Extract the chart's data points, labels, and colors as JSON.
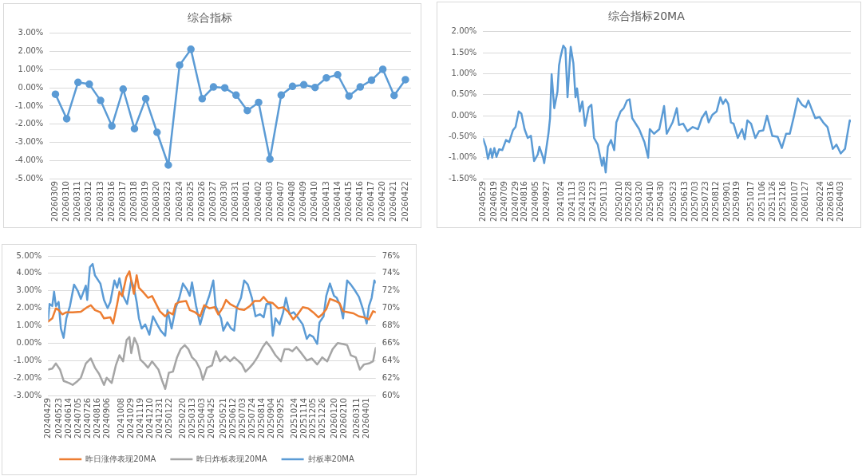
{
  "chart_data": [
    {
      "type": "line",
      "title": "综合指标",
      "categories": [
        "20260309",
        "20260310",
        "20260311",
        "20260312",
        "20260313",
        "20260316",
        "20260317",
        "20260318",
        "20260319",
        "20260320",
        "20260323",
        "20260324",
        "20260325",
        "20260326",
        "20260327",
        "20260330",
        "20260331",
        "20260401",
        "20260402",
        "20260403",
        "20260407",
        "20260408",
        "20260409",
        "20260410",
        "20260413",
        "20260414",
        "20260415",
        "20260416",
        "20260417",
        "20260420",
        "20260421",
        "20260422"
      ],
      "series": [
        {
          "color": "#5b9bd5",
          "values": [
            -0.35,
            -1.7,
            0.3,
            0.2,
            -0.7,
            -2.1,
            -0.07,
            -2.25,
            -0.6,
            -2.45,
            -4.25,
            1.25,
            2.12,
            -0.6,
            0.05,
            0.0,
            -0.4,
            -1.25,
            -0.8,
            -3.92,
            -0.4,
            0.08,
            0.17,
            0.02,
            0.55,
            0.72,
            -0.45,
            0.05,
            0.42,
            1.02,
            -0.42,
            0.45
          ]
        }
      ],
      "ylim": [
        -5,
        3
      ],
      "yticks": [
        {
          "value": -5,
          "label": "-5.00%"
        },
        {
          "value": -4,
          "label": "-4.00%"
        },
        {
          "value": -3,
          "label": "-3.00%"
        },
        {
          "value": -2,
          "label": "-2.00%"
        },
        {
          "value": -1,
          "label": "-1.00%"
        },
        {
          "value": 0,
          "label": "0.00%"
        },
        {
          "value": 1,
          "label": "1.00%"
        },
        {
          "value": 2,
          "label": "2.00%"
        },
        {
          "value": 3,
          "label": "3.00%"
        }
      ],
      "grid": "y",
      "legend": false,
      "marker": "circle",
      "line_style": "solid"
    },
    {
      "type": "line",
      "title": "综合指标20MA",
      "series": [
        {
          "color": "#5b9bd5",
          "x": [
            "2024-05-29",
            "2024-06-03",
            "2024-06-07",
            "2024-06-12",
            "2024-06-15",
            "2024-06-19",
            "2024-06-23",
            "2024-06-28",
            "2024-07-04",
            "2024-07-11",
            "2024-07-17",
            "2024-07-24",
            "2024-07-29",
            "2024-08-04",
            "2024-08-09",
            "2024-08-15",
            "2024-08-21",
            "2024-08-27",
            "2024-09-02",
            "2024-09-09",
            "2024-09-12",
            "2024-09-19",
            "2024-09-21",
            "2024-09-29",
            "2024-10-02",
            "2024-10-05",
            "2024-10-10",
            "2024-10-16",
            "2024-10-19",
            "2024-10-22",
            "2024-10-27",
            "2024-10-31",
            "2024-11-04",
            "2024-11-10",
            "2024-11-15",
            "2024-11-19",
            "2024-11-22",
            "2024-11-27",
            "2024-12-02",
            "2024-12-07",
            "2024-12-14",
            "2024-12-19",
            "2024-12-24",
            "2024-12-31",
            "2025-01-08",
            "2025-01-11",
            "2025-01-15",
            "2025-01-19",
            "2025-01-25",
            "2025-01-31",
            "2025-02-04",
            "2025-02-12",
            "2025-02-18",
            "2025-02-24",
            "2025-03-01",
            "2025-03-06",
            "2025-03-19",
            "2025-03-29",
            "2025-04-05",
            "2025-04-08",
            "2025-04-16",
            "2025-04-26",
            "2025-05-05",
            "2025-05-10",
            "2025-05-21",
            "2025-05-29",
            "2025-06-02",
            "2025-06-10",
            "2025-06-18",
            "2025-06-28",
            "2025-07-08",
            "2025-07-15",
            "2025-07-23",
            "2025-07-28",
            "2025-08-04",
            "2025-08-12",
            "2025-08-19",
            "2025-08-24",
            "2025-08-29",
            "2025-09-03",
            "2025-09-08",
            "2025-09-13",
            "2025-09-21",
            "2025-09-29",
            "2025-10-04",
            "2025-10-09",
            "2025-10-16",
            "2025-10-24",
            "2025-10-31",
            "2025-11-08",
            "2025-11-15",
            "2025-11-25",
            "2025-12-05",
            "2025-12-13",
            "2025-12-21",
            "2025-12-28",
            "2026-01-05",
            "2026-01-12",
            "2026-01-20",
            "2026-01-27",
            "2026-02-01",
            "2026-02-09",
            "2026-02-14",
            "2026-02-22",
            "2026-03-01",
            "2026-03-09",
            "2026-03-19",
            "2026-03-26",
            "2026-04-03",
            "2026-04-11",
            "2026-04-15",
            "2026-04-20",
            "2026-04-22"
          ],
          "values": [
            -0.55,
            -0.74,
            -1.03,
            -0.79,
            -1.0,
            -0.77,
            -0.98,
            -0.8,
            -0.82,
            -0.58,
            -0.63,
            -0.35,
            -0.27,
            0.1,
            0.05,
            -0.32,
            -0.53,
            -0.48,
            -1.08,
            -0.92,
            -0.74,
            -1.0,
            -1.13,
            -0.43,
            -0.06,
            0.99,
            0.18,
            0.57,
            1.2,
            1.41,
            1.67,
            1.6,
            0.44,
            1.64,
            1.25,
            0.44,
            0.65,
            0.1,
            0.34,
            -0.24,
            0.2,
            0.26,
            -0.53,
            -0.69,
            -1.19,
            -1.0,
            -1.35,
            -0.74,
            -0.58,
            -0.82,
            -0.16,
            0.1,
            0.18,
            0.36,
            0.39,
            -0.06,
            -0.32,
            -0.63,
            -1.0,
            -0.32,
            -0.43,
            -0.32,
            0.23,
            -0.43,
            -0.16,
            0.18,
            -0.22,
            -0.19,
            -0.37,
            -0.27,
            -0.32,
            -0.06,
            0.1,
            -0.16,
            0.02,
            0.1,
            0.44,
            0.28,
            0.39,
            0.28,
            -0.16,
            -0.19,
            -0.53,
            -0.32,
            -0.56,
            -0.11,
            -0.19,
            -0.53,
            -0.37,
            -0.35,
            0.0,
            -0.48,
            -0.5,
            -0.77,
            -0.43,
            -0.43,
            0.0,
            0.41,
            0.26,
            0.2,
            0.36,
            0.1,
            -0.06,
            -0.03,
            -0.16,
            -0.27,
            -0.79,
            -0.69,
            -0.9,
            -0.79,
            -0.48,
            -0.11,
            -0.13
          ]
        }
      ],
      "xlim": [
        "2024-05-29",
        "2026-04-22"
      ],
      "xticks": [
        {
          "value": "2024-05-29",
          "label": "20240529"
        },
        {
          "value": "2024-06-19",
          "label": "20240619"
        },
        {
          "value": "2024-07-09",
          "label": "20240709"
        },
        {
          "value": "2024-07-29",
          "label": "20240729"
        },
        {
          "value": "2024-08-16",
          "label": "20240816"
        },
        {
          "value": "2024-09-05",
          "label": "20240905"
        },
        {
          "value": "2024-09-27",
          "label": "20240927"
        },
        {
          "value": "2024-10-24",
          "label": "20241024"
        },
        {
          "value": "2024-11-13",
          "label": "20241113"
        },
        {
          "value": "2024-12-03",
          "label": "20241203"
        },
        {
          "value": "2024-12-23",
          "label": "20241223"
        },
        {
          "value": "2025-01-13",
          "label": "20250113"
        },
        {
          "value": "2025-02-10",
          "label": "20250210"
        },
        {
          "value": "2025-02-28",
          "label": "20250228"
        },
        {
          "value": "2025-03-20",
          "label": "20250320"
        },
        {
          "value": "2025-04-10",
          "label": "20250410"
        },
        {
          "value": "2025-04-30",
          "label": "20250430"
        },
        {
          "value": "2025-05-23",
          "label": "20250523"
        },
        {
          "value": "2025-06-13",
          "label": "20250613"
        },
        {
          "value": "2025-07-03",
          "label": "20250703"
        },
        {
          "value": "2025-07-23",
          "label": "20250723"
        },
        {
          "value": "2025-08-12",
          "label": "20250812"
        },
        {
          "value": "2025-09-01",
          "label": "20250901"
        },
        {
          "value": "2025-09-19",
          "label": "20250919"
        },
        {
          "value": "2025-10-17",
          "label": "20251017"
        },
        {
          "value": "2025-11-06",
          "label": "20251106"
        },
        {
          "value": "2025-11-26",
          "label": "20251126"
        },
        {
          "value": "2025-12-16",
          "label": "20251216"
        },
        {
          "value": "2026-01-07",
          "label": "20260107"
        },
        {
          "value": "2026-01-27",
          "label": "20260127"
        },
        {
          "value": "2026-02-24",
          "label": "20260224"
        },
        {
          "value": "2026-03-16",
          "label": "20260316"
        },
        {
          "value": "2026-04-03",
          "label": "20260403"
        }
      ],
      "ylim": [
        -1.5,
        2
      ],
      "yticks": [
        {
          "value": -1.5,
          "label": "-1.50%"
        },
        {
          "value": -1,
          "label": "-1.00%"
        },
        {
          "value": -0.5,
          "label": "-0.50%"
        },
        {
          "value": 0,
          "label": "0.00%"
        },
        {
          "value": 0.5,
          "label": "0.50%"
        },
        {
          "value": 1,
          "label": "1.00%"
        },
        {
          "value": 1.5,
          "label": "1.50%"
        },
        {
          "value": 2,
          "label": "2.00%"
        }
      ],
      "grid": "y",
      "legend": false,
      "marker": "none",
      "line_style": "solid"
    },
    {
      "type": "line",
      "series": [
        {
          "name": "昨日涨停表现20MA",
          "color": "#ed7d31",
          "x": [
            "2024-04-29",
            "2024-05-08",
            "2024-05-16",
            "2024-05-22",
            "2024-05-30",
            "2024-06-08",
            "2024-06-22",
            "2024-07-10",
            "2024-07-24",
            "2024-08-01",
            "2024-08-10",
            "2024-08-22",
            "2024-08-30",
            "2024-09-13",
            "2024-09-19",
            "2024-09-28",
            "2024-10-03",
            "2024-10-09",
            "2024-10-18",
            "2024-10-25",
            "2024-10-29",
            "2024-11-04",
            "2024-11-10",
            "2024-11-15",
            "2024-11-24",
            "2024-12-05",
            "2024-12-14",
            "2024-12-23",
            "2024-12-31",
            "2025-01-12",
            "2025-01-20",
            "2025-01-29",
            "2025-02-04",
            "2025-02-12",
            "2025-02-27",
            "2025-03-07",
            "2025-03-19",
            "2025-03-30",
            "2025-04-08",
            "2025-04-19",
            "2025-05-01",
            "2025-05-09",
            "2025-05-18",
            "2025-05-26",
            "2025-06-04",
            "2025-06-13",
            "2025-06-24",
            "2025-07-05",
            "2025-07-17",
            "2025-07-28",
            "2025-08-09",
            "2025-08-17",
            "2025-08-26",
            "2025-09-06",
            "2025-09-18",
            "2025-09-29",
            "2025-10-11",
            "2025-10-21",
            "2025-10-31",
            "2025-11-11",
            "2025-11-23",
            "2025-12-04",
            "2025-12-16",
            "2025-12-24",
            "2026-01-02",
            "2026-01-10",
            "2026-01-22",
            "2026-01-31",
            "2026-02-08",
            "2026-02-20",
            "2026-03-03",
            "2026-03-15",
            "2026-03-26",
            "2026-04-06",
            "2026-04-15",
            "2026-04-21"
          ],
          "values": [
            1.24,
            1.42,
            2.0,
            1.9,
            1.65,
            1.77,
            1.77,
            1.8,
            2.06,
            2.18,
            1.9,
            1.77,
            1.42,
            1.48,
            1.13,
            2.24,
            2.94,
            2.7,
            3.77,
            4.12,
            3.59,
            2.83,
            3.89,
            3.18,
            2.94,
            2.6,
            2.7,
            2.24,
            1.83,
            1.54,
            1.77,
            1.65,
            2.24,
            2.36,
            2.42,
            1.9,
            1.77,
            1.54,
            2.18,
            2.0,
            2.06,
            1.65,
            2.0,
            2.48,
            2.24,
            2.12,
            1.95,
            1.9,
            2.12,
            2.42,
            2.42,
            2.65,
            2.36,
            2.3,
            2.0,
            2.06,
            1.77,
            1.36,
            1.65,
            2.06,
            2.0,
            1.77,
            1.48,
            1.65,
            1.95,
            2.54,
            2.42,
            2.3,
            1.83,
            1.77,
            1.71,
            1.54,
            1.48,
            1.36,
            1.83,
            1.77
          ]
        },
        {
          "name": "昨日炸板表现20MA",
          "color": "#a5a5a5",
          "x": [
            "2024-04-29",
            "2024-05-08",
            "2024-05-16",
            "2024-05-25",
            "2024-06-02",
            "2024-06-14",
            "2024-06-22",
            "2024-07-01",
            "2024-07-10",
            "2024-07-21",
            "2024-08-01",
            "2024-08-10",
            "2024-08-19",
            "2024-08-30",
            "2024-09-05",
            "2024-09-16",
            "2024-09-25",
            "2024-10-03",
            "2024-10-11",
            "2024-10-19",
            "2024-10-25",
            "2024-10-29",
            "2024-11-05",
            "2024-11-12",
            "2024-11-18",
            "2024-11-27",
            "2024-12-05",
            "2024-12-14",
            "2024-12-28",
            "2025-01-06",
            "2025-01-12",
            "2025-01-20",
            "2025-01-29",
            "2025-02-07",
            "2025-02-15",
            "2025-02-24",
            "2025-03-04",
            "2025-03-12",
            "2025-03-21",
            "2025-03-30",
            "2025-04-05",
            "2025-04-14",
            "2025-04-25",
            "2025-05-04",
            "2025-05-13",
            "2025-05-24",
            "2025-06-04",
            "2025-06-13",
            "2025-06-21",
            "2025-06-30",
            "2025-07-08",
            "2025-07-17",
            "2025-07-25",
            "2025-08-03",
            "2025-08-15",
            "2025-08-23",
            "2025-09-01",
            "2025-09-12",
            "2025-09-24",
            "2025-10-02",
            "2025-10-11",
            "2025-10-19",
            "2025-10-28",
            "2025-11-08",
            "2025-11-20",
            "2025-12-01",
            "2025-12-13",
            "2025-12-24",
            "2026-01-04",
            "2026-01-16",
            "2026-01-27",
            "2026-02-08",
            "2026-02-17",
            "2026-02-25",
            "2026-03-08",
            "2026-03-17",
            "2026-03-26",
            "2026-04-06",
            "2026-04-15",
            "2026-04-21"
          ],
          "values": [
            -1.51,
            -1.45,
            -1.16,
            -1.51,
            -2.16,
            -2.28,
            -2.39,
            -2.21,
            -1.98,
            -1.16,
            -0.87,
            -1.4,
            -1.75,
            -2.39,
            -1.98,
            -2.28,
            -1.28,
            -0.69,
            -1.04,
            0.19,
            0.36,
            -0.57,
            0.3,
            -0.11,
            -0.93,
            -1.16,
            -1.4,
            -1.04,
            -1.51,
            -2.21,
            -2.62,
            -1.69,
            -1.63,
            -0.81,
            -0.34,
            -0.11,
            -0.34,
            -0.81,
            -1.04,
            -1.51,
            -2.1,
            -1.4,
            -1.28,
            -0.46,
            -1.04,
            -0.75,
            -1.04,
            -0.81,
            -0.99,
            -1.22,
            -1.63,
            -1.4,
            -1.16,
            -0.81,
            -0.22,
            0.07,
            -0.22,
            -0.69,
            -1.04,
            -0.34,
            -0.34,
            -0.46,
            -0.22,
            -0.57,
            -0.99,
            -0.87,
            -1.22,
            -0.81,
            -1.04,
            -0.34,
            0.01,
            -0.05,
            -0.11,
            -0.69,
            -0.81,
            -1.51,
            -1.22,
            -1.16,
            -1.04,
            -0.28
          ]
        },
        {
          "name": "封板率20MA",
          "color": "#5b9bd5",
          "axis": "y2",
          "x": [
            "2024-04-29",
            "2024-05-02",
            "2024-05-08",
            "2024-05-12",
            "2024-05-16",
            "2024-05-22",
            "2024-05-27",
            "2024-06-02",
            "2024-06-08",
            "2024-06-16",
            "2024-06-25",
            "2024-07-03",
            "2024-07-10",
            "2024-07-21",
            "2024-07-24",
            "2024-07-30",
            "2024-08-05",
            "2024-08-10",
            "2024-08-22",
            "2024-08-30",
            "2024-09-07",
            "2024-09-13",
            "2024-09-22",
            "2024-09-28",
            "2024-10-03",
            "2024-10-11",
            "2024-10-20",
            "2024-10-29",
            "2024-11-04",
            "2024-11-10",
            "2024-11-15",
            "2024-11-21",
            "2024-11-29",
            "2024-12-08",
            "2024-12-16",
            "2024-12-25",
            "2025-01-02",
            "2025-01-12",
            "2025-01-17",
            "2025-01-26",
            "2025-02-04",
            "2025-02-12",
            "2025-02-20",
            "2025-03-01",
            "2025-03-07",
            "2025-03-12",
            "2025-03-21",
            "2025-03-30",
            "2025-04-08",
            "2025-04-19",
            "2025-04-28",
            "2025-05-03",
            "2025-05-15",
            "2025-05-20",
            "2025-05-29",
            "2025-06-06",
            "2025-06-13",
            "2025-06-19",
            "2025-06-28",
            "2025-07-05",
            "2025-07-13",
            "2025-07-22",
            "2025-07-30",
            "2025-08-09",
            "2025-08-17",
            "2025-08-23",
            "2025-09-01",
            "2025-09-06",
            "2025-09-12",
            "2025-09-21",
            "2025-09-29",
            "2025-10-05",
            "2025-10-13",
            "2025-10-22",
            "2025-10-31",
            "2025-11-11",
            "2025-11-20",
            "2025-11-26",
            "2025-12-04",
            "2025-12-13",
            "2025-12-18",
            "2025-12-27",
            "2026-01-02",
            "2026-01-10",
            "2026-01-19",
            "2026-01-25",
            "2026-02-02",
            "2026-02-08",
            "2026-02-17",
            "2026-02-25",
            "2026-03-05",
            "2026-03-15",
            "2026-03-23",
            "2026-04-01",
            "2026-04-06",
            "2026-04-12",
            "2026-04-18",
            "2026-04-21"
          ],
          "values": [
            68.73,
            70.5,
            70.26,
            71.9,
            70.26,
            70.73,
            67.68,
            66.62,
            68.85,
            70.26,
            72.72,
            72.02,
            71.08,
            72.6,
            70.96,
            74.72,
            75.07,
            73.78,
            72.84,
            70.96,
            70.02,
            70.73,
            73.19,
            72.37,
            73.43,
            71.43,
            70.49,
            73.19,
            72.37,
            70.73,
            68.85,
            67.68,
            68.15,
            66.97,
            69.08,
            68.18,
            67.44,
            66.85,
            69.79,
            67.68,
            70.02,
            71.2,
            72.84,
            72.14,
            71.43,
            72.96,
            70.26,
            68.15,
            69.79,
            71.43,
            73.19,
            70.26,
            68.85,
            67.44,
            68.38,
            67.68,
            67.44,
            70.14,
            71.2,
            73.19,
            72.72,
            71.2,
            69.08,
            69.32,
            68.97,
            70.49,
            70.49,
            66.85,
            68.85,
            68.15,
            69.55,
            71.2,
            69.32,
            69.55,
            68.97,
            68.15,
            66.5,
            66.97,
            66.74,
            65.92,
            68.38,
            69.08,
            71.43,
            72.84,
            71.43,
            71.2,
            70.26,
            68.85,
            73.19,
            72.72,
            72.14,
            71.31,
            70.02,
            68.26,
            70.26,
            71.2,
            73.19,
            72.96
          ]
        }
      ],
      "xlim": [
        "2024-04-29",
        "2026-04-21"
      ],
      "xticks": [
        {
          "value": "2024-04-29",
          "label": "20240429"
        },
        {
          "value": "2024-05-23",
          "label": "20240523"
        },
        {
          "value": "2024-06-14",
          "label": "20240614"
        },
        {
          "value": "2024-07-05",
          "label": "20240705"
        },
        {
          "value": "2024-07-26",
          "label": "20240726"
        },
        {
          "value": "2024-08-16",
          "label": "20240816"
        },
        {
          "value": "2024-09-06",
          "label": "20240906"
        },
        {
          "value": "2024-10-08",
          "label": "20241008"
        },
        {
          "value": "2024-10-29",
          "label": "20241029"
        },
        {
          "value": "2024-11-19",
          "label": "20241119"
        },
        {
          "value": "2024-12-10",
          "label": "20241210"
        },
        {
          "value": "2024-12-31",
          "label": "20241231"
        },
        {
          "value": "2025-01-22",
          "label": "20250122"
        },
        {
          "value": "2025-02-20",
          "label": "20250220"
        },
        {
          "value": "2025-03-13",
          "label": "20250313"
        },
        {
          "value": "2025-04-03",
          "label": "20250403"
        },
        {
          "value": "2025-04-25",
          "label": "20250425"
        },
        {
          "value": "2025-05-21",
          "label": "20250521"
        },
        {
          "value": "2025-06-12",
          "label": "20250612"
        },
        {
          "value": "2025-07-03",
          "label": "20250703"
        },
        {
          "value": "2025-07-24",
          "label": "20250724"
        },
        {
          "value": "2025-08-14",
          "label": "20250814"
        },
        {
          "value": "2025-09-04",
          "label": "20250904"
        },
        {
          "value": "2025-09-25",
          "label": "20250925"
        },
        {
          "value": "2025-10-24",
          "label": "20251024"
        },
        {
          "value": "2025-11-14",
          "label": "20251114"
        },
        {
          "value": "2025-12-05",
          "label": "20251205"
        },
        {
          "value": "2025-12-26",
          "label": "20251226"
        },
        {
          "value": "2026-01-20",
          "label": "20260120"
        },
        {
          "value": "2026-02-10",
          "label": "20260210"
        },
        {
          "value": "2026-03-11",
          "label": "20260311"
        },
        {
          "value": "2026-04-01",
          "label": "20260401"
        }
      ],
      "ylim": [
        -3,
        5
      ],
      "yticks": [
        {
          "value": -3,
          "label": "-3.00%"
        },
        {
          "value": -2,
          "label": "-2.00%"
        },
        {
          "value": -1,
          "label": "-1.00%"
        },
        {
          "value": 0,
          "label": "0.00%"
        },
        {
          "value": 1,
          "label": "1.00%"
        },
        {
          "value": 2,
          "label": "2.00%"
        },
        {
          "value": 3,
          "label": "3.00%"
        },
        {
          "value": 4,
          "label": "4.00%"
        },
        {
          "value": 5,
          "label": "5.00%"
        }
      ],
      "y2lim": [
        60,
        76
      ],
      "y2ticks": [
        {
          "value": 60,
          "label": "60%"
        },
        {
          "value": 62,
          "label": "62%"
        },
        {
          "value": 64,
          "label": "64%"
        },
        {
          "value": 66,
          "label": "66%"
        },
        {
          "value": 68,
          "label": "68%"
        },
        {
          "value": 70,
          "label": "70%"
        },
        {
          "value": 72,
          "label": "72%"
        },
        {
          "value": 74,
          "label": "74%"
        },
        {
          "value": 76,
          "label": "76%"
        }
      ],
      "grid": "y",
      "legend": "bottom",
      "marker": "none",
      "line_style": "solid"
    }
  ]
}
